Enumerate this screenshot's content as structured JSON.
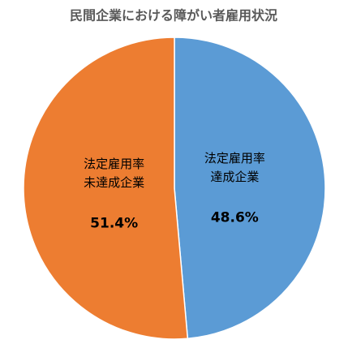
{
  "chart_data": {
    "type": "pie",
    "title": "民間企業における障がい者雇用状況",
    "categories": [
      [
        "法定雇用率",
        "達成企業"
      ],
      [
        "法定雇用率",
        "未達成企業"
      ]
    ],
    "values": [
      48.6,
      51.4
    ],
    "value_labels": [
      "48.6%",
      "51.4%"
    ],
    "colors": [
      "#5b9bd5",
      "#ed7d31"
    ]
  }
}
